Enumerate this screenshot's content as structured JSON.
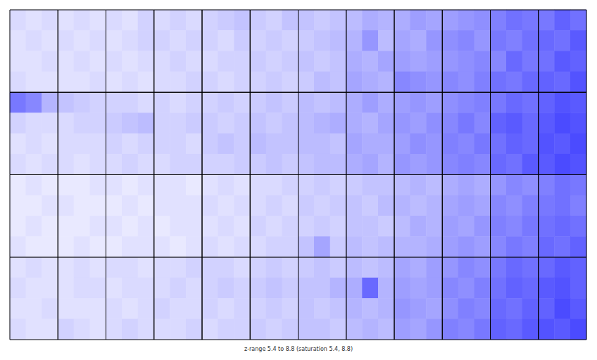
{
  "chart_data": {
    "type": "heatmap",
    "caption": "z-range 5.4 to 8.8 (saturation 5.4, 8.8)",
    "tick_labels": false,
    "color": "#0000ff",
    "colorbar_range": [
      5.4,
      8.8
    ],
    "panels": [
      [
        [
          [
            5.9,
            5.8,
            5.9
          ],
          [
            5.8,
            5.9,
            5.8
          ],
          [
            5.8,
            5.8,
            5.9
          ],
          [
            5.9,
            5.8,
            5.8
          ]
        ],
        [
          [
            5.8,
            5.9,
            5.8
          ],
          [
            5.9,
            5.8,
            5.9
          ],
          [
            5.8,
            5.9,
            5.8
          ],
          [
            5.8,
            5.8,
            5.9
          ]
        ],
        [
          [
            5.9,
            5.8,
            6.0
          ],
          [
            5.8,
            5.9,
            6.0
          ],
          [
            5.9,
            5.8,
            5.9
          ],
          [
            5.8,
            5.9,
            5.8
          ]
        ],
        [
          [
            5.9,
            6.0,
            5.9
          ],
          [
            6.0,
            5.9,
            6.0
          ],
          [
            5.9,
            6.0,
            5.9
          ],
          [
            5.9,
            5.9,
            6.0
          ]
        ],
        [
          [
            6.0,
            6.1,
            6.2
          ],
          [
            6.0,
            5.9,
            6.1
          ],
          [
            5.9,
            6.0,
            6.0
          ],
          [
            6.0,
            5.9,
            6.0
          ]
        ],
        [
          [
            6.1,
            6.0,
            6.2
          ],
          [
            6.0,
            6.1,
            6.0
          ],
          [
            6.1,
            6.0,
            6.1
          ],
          [
            6.0,
            6.1,
            6.0
          ]
        ],
        [
          [
            6.2,
            6.1,
            6.2
          ],
          [
            6.1,
            6.2,
            6.3
          ],
          [
            6.2,
            6.1,
            6.2
          ],
          [
            6.1,
            6.3,
            6.2
          ]
        ],
        [
          [
            6.3,
            6.5,
            6.4
          ],
          [
            6.4,
            6.8,
            6.3
          ],
          [
            6.5,
            6.4,
            6.6
          ],
          [
            6.6,
            6.5,
            6.4
          ]
        ],
        [
          [
            6.5,
            6.7,
            6.6
          ],
          [
            6.6,
            6.5,
            6.8
          ],
          [
            6.7,
            6.6,
            6.7
          ],
          [
            7.0,
            6.9,
            6.8
          ]
        ],
        [
          [
            6.7,
            6.8,
            6.9
          ],
          [
            6.9,
            7.0,
            6.8
          ],
          [
            6.8,
            6.9,
            7.0
          ],
          [
            7.0,
            6.9,
            7.1
          ]
        ],
        [
          [
            7.1,
            7.3,
            7.2
          ],
          [
            7.2,
            7.1,
            7.3
          ],
          [
            7.0,
            7.4,
            7.2
          ],
          [
            7.3,
            7.2,
            7.4
          ]
        ],
        [
          [
            7.2,
            7.5,
            7.3
          ],
          [
            7.4,
            7.3,
            7.6
          ],
          [
            7.3,
            7.6,
            7.5
          ],
          [
            7.5,
            7.4,
            7.7
          ]
        ]
      ],
      [
        [
          [
            7.2,
            7.0,
            6.4
          ],
          [
            6.0,
            5.9,
            5.9
          ],
          [
            5.8,
            5.9,
            5.8
          ],
          [
            5.9,
            5.8,
            5.9
          ]
        ],
        [
          [
            6.2,
            6.1,
            6.0
          ],
          [
            5.9,
            6.0,
            6.0
          ],
          [
            5.9,
            5.9,
            5.9
          ],
          [
            5.9,
            5.8,
            5.9
          ]
        ],
        [
          [
            6.0,
            6.0,
            5.9
          ],
          [
            6.1,
            6.2,
            6.3
          ],
          [
            6.0,
            5.9,
            6.0
          ],
          [
            5.9,
            6.0,
            5.9
          ]
        ],
        [
          [
            6.0,
            5.9,
            6.0
          ],
          [
            6.0,
            6.0,
            6.1
          ],
          [
            6.0,
            6.0,
            5.9
          ],
          [
            5.9,
            6.0,
            6.0
          ]
        ],
        [
          [
            6.0,
            6.1,
            6.0
          ],
          [
            6.1,
            6.0,
            6.1
          ],
          [
            6.1,
            6.2,
            6.1
          ],
          [
            6.0,
            6.0,
            6.1
          ]
        ],
        [
          [
            6.1,
            6.2,
            6.1
          ],
          [
            6.2,
            6.1,
            6.2
          ],
          [
            6.3,
            6.2,
            6.2
          ],
          [
            6.1,
            6.2,
            6.1
          ]
        ],
        [
          [
            6.3,
            6.2,
            6.3
          ],
          [
            6.3,
            6.4,
            6.5
          ],
          [
            6.3,
            6.3,
            6.2
          ],
          [
            6.2,
            6.3,
            6.3
          ]
        ],
        [
          [
            6.5,
            6.7,
            6.5
          ],
          [
            6.5,
            6.4,
            6.6
          ],
          [
            6.6,
            6.5,
            6.5
          ],
          [
            6.5,
            6.6,
            6.4
          ]
        ],
        [
          [
            6.7,
            6.8,
            6.7
          ],
          [
            6.8,
            6.7,
            6.9
          ],
          [
            6.7,
            6.9,
            6.8
          ],
          [
            6.8,
            6.7,
            6.8
          ]
        ],
        [
          [
            6.9,
            7.0,
            7.1
          ],
          [
            7.0,
            7.2,
            7.0
          ],
          [
            7.1,
            7.0,
            7.2
          ],
          [
            7.0,
            7.1,
            7.0
          ]
        ],
        [
          [
            7.2,
            7.4,
            7.3
          ],
          [
            7.5,
            7.6,
            7.4
          ],
          [
            7.3,
            7.5,
            7.4
          ],
          [
            7.4,
            7.3,
            7.6
          ]
        ],
        [
          [
            7.5,
            7.7,
            7.6
          ],
          [
            7.6,
            7.8,
            7.7
          ],
          [
            7.7,
            7.6,
            7.8
          ],
          [
            7.6,
            7.8,
            7.7
          ]
        ]
      ],
      [
        [
          [
            5.7,
            5.8,
            5.7
          ],
          [
            5.7,
            5.7,
            5.8
          ],
          [
            5.7,
            5.8,
            5.7
          ],
          [
            5.8,
            5.7,
            5.7
          ]
        ],
        [
          [
            5.7,
            5.7,
            5.8
          ],
          [
            5.8,
            5.7,
            5.7
          ],
          [
            5.7,
            5.7,
            5.8
          ],
          [
            5.7,
            5.8,
            5.7
          ]
        ],
        [
          [
            5.8,
            5.7,
            5.8
          ],
          [
            5.7,
            5.8,
            5.7
          ],
          [
            5.8,
            5.7,
            5.8
          ],
          [
            5.7,
            5.8,
            5.8
          ]
        ],
        [
          [
            5.8,
            5.8,
            5.7
          ],
          [
            5.8,
            5.8,
            5.8
          ],
          [
            5.7,
            5.8,
            5.8
          ],
          [
            5.8,
            5.7,
            5.8
          ]
        ],
        [
          [
            5.8,
            5.9,
            5.8
          ],
          [
            5.9,
            5.8,
            5.9
          ],
          [
            5.8,
            5.9,
            5.8
          ],
          [
            5.9,
            5.8,
            5.9
          ]
        ],
        [
          [
            5.9,
            5.9,
            6.0
          ],
          [
            5.9,
            6.0,
            5.9
          ],
          [
            6.0,
            5.9,
            6.0
          ],
          [
            5.9,
            6.0,
            6.0
          ]
        ],
        [
          [
            6.0,
            6.1,
            6.0
          ],
          [
            6.1,
            6.0,
            6.1
          ],
          [
            6.0,
            6.1,
            6.0
          ],
          [
            6.2,
            6.6,
            6.1
          ]
        ],
        [
          [
            6.1,
            6.2,
            6.2
          ],
          [
            6.2,
            6.1,
            6.3
          ],
          [
            6.2,
            6.2,
            6.1
          ],
          [
            6.3,
            6.2,
            6.3
          ]
        ],
        [
          [
            6.3,
            6.4,
            6.3
          ],
          [
            6.4,
            6.3,
            6.4
          ],
          [
            6.3,
            6.5,
            6.4
          ],
          [
            6.4,
            6.4,
            6.5
          ]
        ],
        [
          [
            6.5,
            6.6,
            6.5
          ],
          [
            6.6,
            6.7,
            6.6
          ],
          [
            6.7,
            6.6,
            6.8
          ],
          [
            6.7,
            6.8,
            6.7
          ]
        ],
        [
          [
            6.8,
            7.0,
            6.9
          ],
          [
            7.0,
            6.9,
            7.1
          ],
          [
            7.1,
            7.0,
            7.2
          ],
          [
            7.0,
            7.2,
            7.1
          ]
        ],
        [
          [
            7.1,
            7.3,
            7.2
          ],
          [
            7.2,
            7.3,
            7.1
          ],
          [
            7.3,
            7.4,
            7.3
          ],
          [
            7.4,
            7.3,
            7.5
          ]
        ]
      ],
      [
        [
          [
            5.8,
            5.9,
            5.8
          ],
          [
            5.9,
            5.8,
            5.8
          ],
          [
            5.8,
            5.8,
            5.9
          ],
          [
            5.9,
            5.8,
            5.8
          ]
        ],
        [
          [
            5.8,
            5.9,
            5.8
          ],
          [
            5.8,
            5.9,
            5.9
          ],
          [
            5.8,
            5.8,
            5.8
          ],
          [
            6.0,
            5.9,
            5.8
          ]
        ],
        [
          [
            5.9,
            5.9,
            5.8
          ],
          [
            5.8,
            5.9,
            5.9
          ],
          [
            5.9,
            5.8,
            5.9
          ],
          [
            5.9,
            6.0,
            5.9
          ]
        ],
        [
          [
            5.9,
            5.9,
            6.0
          ],
          [
            5.9,
            6.0,
            5.9
          ],
          [
            6.0,
            5.9,
            5.9
          ],
          [
            5.9,
            5.9,
            6.0
          ]
        ],
        [
          [
            6.0,
            6.0,
            5.9
          ],
          [
            6.0,
            6.1,
            6.0
          ],
          [
            6.0,
            5.9,
            6.0
          ],
          [
            5.9,
            6.0,
            6.0
          ]
        ],
        [
          [
            6.0,
            6.1,
            6.0
          ],
          [
            6.1,
            6.2,
            6.1
          ],
          [
            6.0,
            6.1,
            6.0
          ],
          [
            6.1,
            6.0,
            6.1
          ]
        ],
        [
          [
            6.1,
            6.2,
            6.1
          ],
          [
            6.2,
            6.2,
            6.4
          ],
          [
            6.2,
            6.1,
            6.2
          ],
          [
            6.2,
            6.2,
            6.1
          ]
        ],
        [
          [
            6.3,
            6.2,
            6.3
          ],
          [
            6.5,
            7.4,
            6.4
          ],
          [
            6.4,
            6.3,
            6.4
          ],
          [
            6.3,
            6.4,
            6.3
          ]
        ],
        [
          [
            6.6,
            6.5,
            6.7
          ],
          [
            6.7,
            6.6,
            6.7
          ],
          [
            6.8,
            6.7,
            6.6
          ],
          [
            6.7,
            6.6,
            6.8
          ]
        ],
        [
          [
            6.8,
            7.0,
            6.9
          ],
          [
            7.0,
            6.9,
            7.1
          ],
          [
            6.9,
            7.1,
            7.0
          ],
          [
            7.1,
            7.0,
            7.2
          ]
        ],
        [
          [
            7.2,
            7.4,
            7.3
          ],
          [
            7.3,
            7.5,
            7.4
          ],
          [
            7.4,
            7.3,
            7.5
          ],
          [
            7.5,
            7.4,
            7.6
          ]
        ],
        [
          [
            7.4,
            7.6,
            7.5
          ],
          [
            7.6,
            7.7,
            7.5
          ],
          [
            7.5,
            7.8,
            7.6
          ],
          [
            7.7,
            7.6,
            7.8
          ]
        ]
      ]
    ]
  }
}
